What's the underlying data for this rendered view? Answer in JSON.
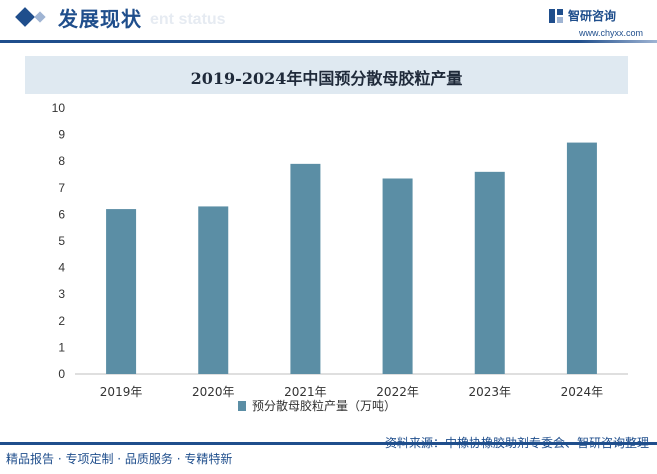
{
  "header": {
    "title": "发展现状",
    "title_ghost": "ent status",
    "brand_name": "智研咨询",
    "brand_url": "www.chyxx.com"
  },
  "footer": {
    "left": "精品报告 · 专项定制 · 品质服务 · 专精特新",
    "right": "资料来源：中橡协橡胶助剂专委会、智研咨询整理"
  },
  "colors": {
    "accent": "#1f4e8c",
    "bar": "#5b8ea5",
    "title_band": "#dfe9f1"
  },
  "chart_data": {
    "type": "bar",
    "title": "2019-2024年中国预分散母胶粒产量",
    "categories": [
      "2019年",
      "2020年",
      "2021年",
      "2022年",
      "2023年",
      "2024年"
    ],
    "series": [
      {
        "name": "预分散母胶粒产量（万吨）",
        "values": [
          6.2,
          6.3,
          7.9,
          7.35,
          7.6,
          8.7
        ]
      }
    ],
    "ylim": [
      0,
      10
    ],
    "yticks": [
      0,
      1,
      2,
      3,
      4,
      5,
      6,
      7,
      8,
      9,
      10
    ],
    "grid": false,
    "legend": "bottom"
  }
}
